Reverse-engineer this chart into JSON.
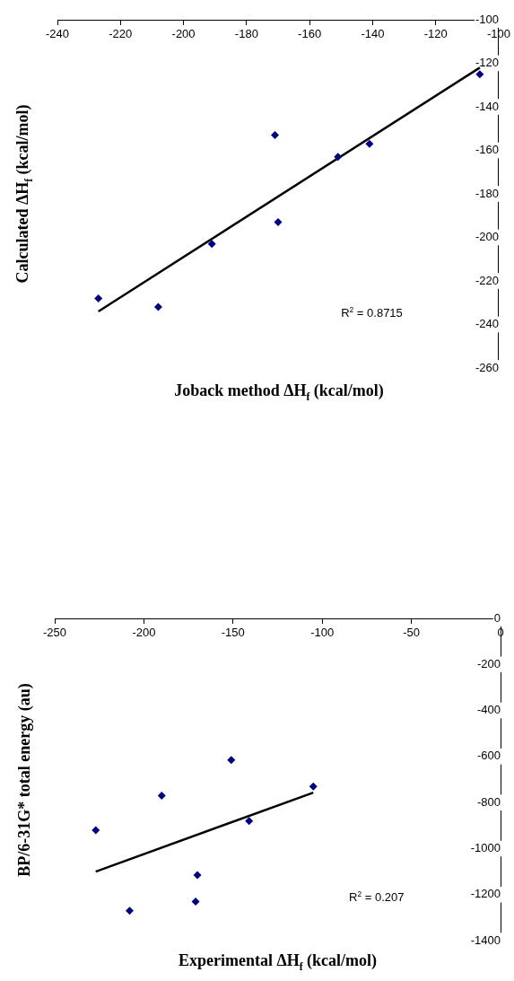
{
  "chart_data": [
    {
      "type": "scatter",
      "xlabel": "Joback method ΔH$_{f}$ (kcal/mol)",
      "ylabel": "Calculated ΔH$_{f}$ (kcal/mol)",
      "xlim": [
        -240,
        -100
      ],
      "xticks": [
        -240,
        -220,
        -200,
        -180,
        -160,
        -140,
        -120,
        -100
      ],
      "ylim": [
        -260,
        -100
      ],
      "yticks": [
        -260,
        -240,
        -220,
        -200,
        -180,
        -160,
        -140,
        -120,
        -100
      ],
      "grid": false,
      "annotations": [
        "R$^{2}$ = 0.8715"
      ],
      "series": [
        {
          "type": "scatter",
          "color": "#000080",
          "marker": "diamond",
          "x": [
            -227,
            -208,
            -191,
            -171,
            -170,
            -151,
            -141,
            -106
          ],
          "values": [
            -228,
            -232,
            -203,
            -153,
            -193,
            -163,
            -157,
            -125
          ]
        },
        {
          "type": "line",
          "color": "#000000",
          "marker": "none",
          "x": [
            -227,
            -106
          ],
          "values": [
            -234,
            -122
          ]
        }
      ]
    },
    {
      "type": "scatter",
      "xlabel": "Experimental ΔH$_{f}$ (kcal/mol)",
      "ylabel": "BP/6-31G* total energy (au)",
      "xlim": [
        -250,
        0
      ],
      "xticks": [
        -250,
        -200,
        -150,
        -100,
        -50,
        0
      ],
      "ylim": [
        -1400,
        0
      ],
      "yticks": [
        -1400,
        -1200,
        -1000,
        -800,
        -600,
        -400,
        -200,
        0
      ],
      "grid": false,
      "annotations": [
        "R$^{2}$ = 0.207"
      ],
      "series": [
        {
          "type": "scatter",
          "color": "#000080",
          "marker": "diamond",
          "x": [
            -227,
            -208,
            -190,
            -171,
            -170,
            -151,
            -141,
            -105
          ],
          "values": [
            -920,
            -1270,
            -770,
            -1230,
            -1115,
            -615,
            -880,
            -730
          ]
        },
        {
          "type": "line",
          "color": "#000000",
          "marker": "none",
          "x": [
            -227,
            -105
          ],
          "values": [
            -1100,
            -757
          ]
        }
      ]
    }
  ]
}
